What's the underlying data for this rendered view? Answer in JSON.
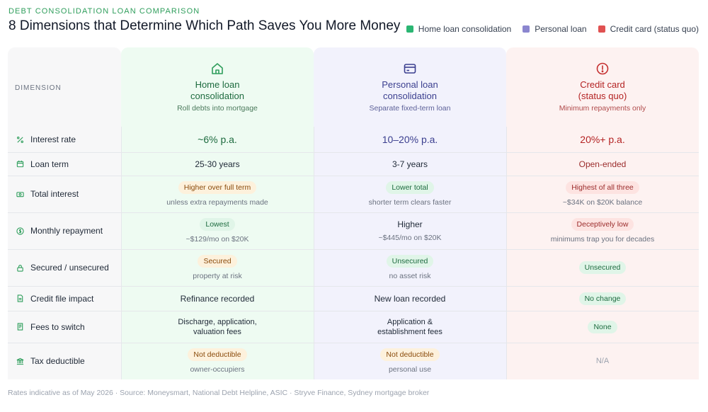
{
  "header": {
    "eyebrow": "DEBT CONSOLIDATION LOAN COMPARISON",
    "title": "8 Dimensions that Determine Which Path Saves You More Money"
  },
  "legend": [
    {
      "label": "Home loan consolidation",
      "color": "#2bb673"
    },
    {
      "label": "Personal loan",
      "color": "#8b86cf"
    },
    {
      "label": "Credit card (status quo)",
      "color": "#e05151"
    }
  ],
  "colors": {
    "home": "#1d6b3f",
    "personal": "#3b3f8f",
    "credit": "#b42323"
  },
  "dimension_header": "DIMENSION",
  "columns": [
    {
      "icon": "house-icon",
      "name_line1": "Home loan",
      "name_line2": "consolidation",
      "sub": "Roll debts into mortgage"
    },
    {
      "icon": "card-icon",
      "name_line1": "Personal loan",
      "name_line2": "consolidation",
      "sub": "Separate fixed-term loan"
    },
    {
      "icon": "alert-icon",
      "name_line1": "Credit card",
      "name_line2": "(status quo)",
      "sub": "Minimum repayments only"
    }
  ],
  "rows": [
    {
      "dimension": "Interest rate",
      "icon": "percent-icon",
      "home": {
        "value": "~6% p.a."
      },
      "personal": {
        "value": "10–20% p.a."
      },
      "credit": {
        "value": "20%+ p.a."
      }
    },
    {
      "dimension": "Loan term",
      "icon": "calendar-icon",
      "home": {
        "value": "25-30 years"
      },
      "personal": {
        "value": "3-7 years"
      },
      "credit": {
        "value": "Open-ended"
      }
    },
    {
      "dimension": "Total interest",
      "icon": "cash-icon",
      "home": {
        "badge": "Higher over full term",
        "sub": "unless extra repayments made"
      },
      "personal": {
        "badge": "Lower total",
        "sub": "shorter term clears faster"
      },
      "credit": {
        "badge": "Highest of all three",
        "sub": "~$34K on $20K balance"
      }
    },
    {
      "dimension": "Monthly repayment",
      "icon": "dollar-icon",
      "home": {
        "badge": "Lowest",
        "sub": "~$129/mo on $20K"
      },
      "personal": {
        "value": "Higher",
        "sub": "~$445/mo on $20K"
      },
      "credit": {
        "badge": "Deceptively low",
        "sub": "minimums trap you for decades"
      }
    },
    {
      "dimension": "Secured / unsecured",
      "icon": "lock-icon",
      "home": {
        "badge": "Secured",
        "sub": "property at risk"
      },
      "personal": {
        "badge": "Unsecured",
        "sub": "no asset risk"
      },
      "credit": {
        "badge": "Unsecured"
      }
    },
    {
      "dimension": "Credit file impact",
      "icon": "document-icon",
      "home": {
        "value": "Refinance recorded"
      },
      "personal": {
        "value": "New loan recorded"
      },
      "credit": {
        "badge": "No change"
      }
    },
    {
      "dimension": "Fees to switch",
      "icon": "receipt-icon",
      "home": {
        "value_line1": "Discharge, application,",
        "value_line2": "valuation fees"
      },
      "personal": {
        "value_line1": "Application &",
        "value_line2": "establishment fees"
      },
      "credit": {
        "badge": "None"
      }
    },
    {
      "dimension": "Tax deductible",
      "icon": "bank-icon",
      "home": {
        "badge": "Not deductible",
        "sub": "owner-occupiers"
      },
      "personal": {
        "badge": "Not deductible",
        "sub": "personal use"
      },
      "credit": {
        "value": "N/A"
      }
    }
  ],
  "footer": "Rates indicative as of May 2026 · Source: Moneysmart, National Debt Helpline, ASIC · Stryve Finance, Sydney mortgage broker"
}
